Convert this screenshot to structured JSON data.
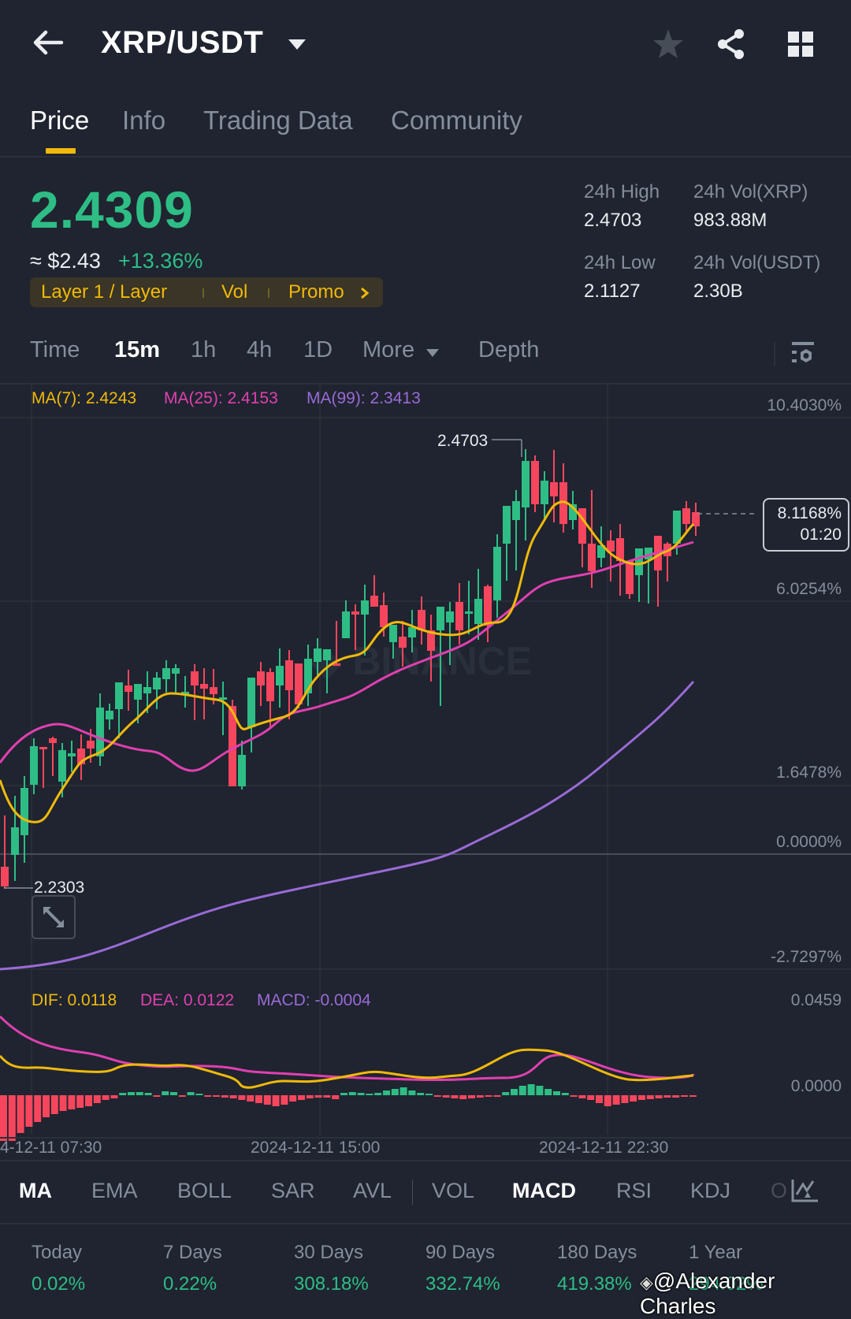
{
  "header": {
    "pair": "XRP/USDT",
    "icons": [
      "back-arrow-icon",
      "dropdown-caret-icon",
      "star-icon",
      "share-icon",
      "grid-icon"
    ]
  },
  "tabs": [
    {
      "label": "Price",
      "active": true
    },
    {
      "label": "Info",
      "active": false
    },
    {
      "label": "Trading Data",
      "active": false
    },
    {
      "label": "Community",
      "active": false
    }
  ],
  "ticker": {
    "last_price": "2.4309",
    "usd_approx": "≈ $2.43",
    "change_pct": "+13.36%",
    "tags": [
      "Layer 1 / Layer",
      "Vol",
      "Promo"
    ],
    "high_label": "24h High",
    "high_value": "2.4703",
    "low_label": "24h Low",
    "low_value": "2.1127",
    "vol_base_label": "24h Vol(XRP)",
    "vol_base_value": "983.88M",
    "vol_quote_label": "24h Vol(USDT)",
    "vol_quote_value": "2.30B",
    "accent_up": "#2ebd85",
    "accent_down": "#f6465d",
    "brand": "#f0b90b"
  },
  "timeframes": {
    "items": [
      "Time",
      "15m",
      "1h",
      "4h",
      "1D",
      "More",
      "Depth"
    ],
    "active": "15m"
  },
  "chart": {
    "ma7": "MA(7): 2.4243",
    "ma25": "MA(25): 2.4153",
    "ma99": "MA(99): 2.3413",
    "y_axis": [
      "10.4030%",
      "6.0254%",
      "1.6478%",
      "0.0000%",
      "-2.7297%"
    ],
    "high_marker": "2.4703",
    "low_marker": "2.2303",
    "current_pct": "8.1168%",
    "countdown": "01:20",
    "watermark": "BINANCE",
    "x_axis": [
      "4-12-11 07:30",
      "2024-12-11 15:00",
      "2024-12-11 22:30"
    ]
  },
  "macd": {
    "dif": "DIF: 0.0118",
    "dea": "DEA: 0.0122",
    "macd": "MACD: -0.0004",
    "y_axis": [
      "0.0459",
      "0.0000"
    ]
  },
  "indicators": {
    "items": [
      "MA",
      "EMA",
      "BOLL",
      "SAR",
      "AVL",
      "VOL",
      "MACD",
      "RSI",
      "KDJ",
      "O"
    ],
    "active": [
      "MA",
      "MACD"
    ]
  },
  "performance": [
    {
      "label": "Today",
      "value": "0.02%"
    },
    {
      "label": "7 Days",
      "value": "0.22%"
    },
    {
      "label": "30 Days",
      "value": "308.18%"
    },
    {
      "label": "90 Days",
      "value": "332.74%"
    },
    {
      "label": "180 Days",
      "value": "419.38%"
    },
    {
      "label": "1 Year",
      "value": "294.02%"
    }
  ],
  "watermark_credit": "@Alexander Charles",
  "chart_data": {
    "type": "candlestick",
    "title": "XRP/USDT 15m",
    "y_axis_percent_ticks": [
      "10.4030%",
      "6.0254%",
      "1.6478%",
      "0.0000%",
      "-2.7297%"
    ],
    "x_ticks": [
      "2024-12-11 07:30",
      "2024-12-11 15:00",
      "2024-12-11 22:30"
    ],
    "high": 2.4703,
    "low": 2.2303,
    "last": 2.4309,
    "series": [
      {
        "name": "MA(7)",
        "last": 2.4243,
        "color": "#f0b90b"
      },
      {
        "name": "MA(25)",
        "last": 2.4153,
        "color": "#e040b0"
      },
      {
        "name": "MA(99)",
        "last": 2.3413,
        "color": "#9a6ad6"
      }
    ],
    "macd": {
      "dif": 0.0118,
      "dea": 0.0122,
      "macd": -0.0004,
      "ylim": [
        0.0,
        0.0459
      ]
    }
  }
}
